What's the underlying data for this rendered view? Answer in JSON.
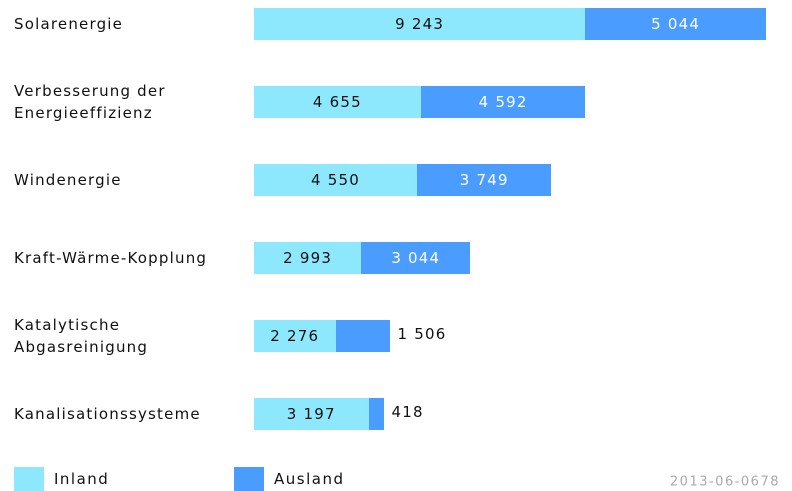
{
  "chart_data": {
    "type": "bar",
    "orientation": "horizontal",
    "stacked": true,
    "categories": [
      "Solarenergie",
      "Verbesserung der\nEnergieeffizienz",
      "Windenergie",
      "Kraft-Wärme-Kopplung",
      "Katalytische\nAbgasreinigung",
      "Kanalisationssysteme"
    ],
    "series": [
      {
        "name": "Inland",
        "color": "#8de8fd",
        "values": [
          9243,
          4655,
          4550,
          2993,
          2276,
          3197
        ],
        "value_labels": [
          "9 243",
          "4 655",
          "4 550",
          "2 993",
          "2 276",
          "3 197"
        ]
      },
      {
        "name": "Ausland",
        "color": "#4a9dff",
        "values": [
          5044,
          4592,
          3749,
          3044,
          1506,
          418
        ],
        "value_labels": [
          "5 044",
          "4 592",
          "3 749",
          "3 044",
          "1 506",
          "418"
        ]
      }
    ],
    "note": "2013-06-0678"
  }
}
